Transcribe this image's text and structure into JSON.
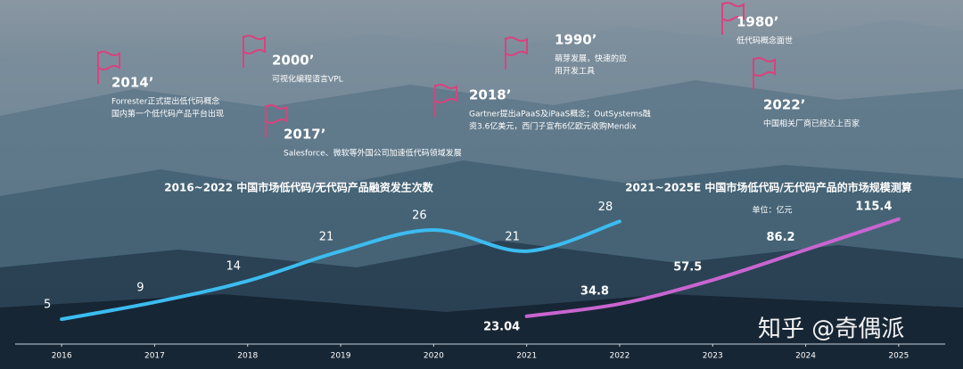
{
  "chart_data": [
    {
      "type": "line",
      "title": "2016~2022 中国市场低代码/无代码产品融资发生次数",
      "x": [
        2016,
        2017,
        2018,
        2019,
        2020,
        2021,
        2022
      ],
      "values": [
        5,
        9,
        14,
        21,
        26,
        21,
        28
      ],
      "color": "#3cbcf0",
      "xlim": [
        2015.5,
        2025.5
      ],
      "xticks": [
        2016,
        2017,
        2018,
        2019,
        2020,
        2021,
        2022,
        2023,
        2024,
        2025
      ]
    },
    {
      "type": "line",
      "title": "2021~2025E 中国市场低代码/无代码产品的市场规模测算",
      "subtitle": "单位：亿元",
      "x": [
        2021,
        2022,
        2023,
        2024,
        2025
      ],
      "values": [
        23.04,
        34.8,
        57.5,
        86.2,
        115.4
      ],
      "color": "#c865d0",
      "xlim": [
        2015.5,
        2025.5
      ]
    }
  ],
  "timeline": [
    {
      "year": "2014’",
      "lines": [
        "Forrester正式提出低代码概念",
        "国内第一个低代码产品平台出现"
      ]
    },
    {
      "year": "2000’",
      "lines": [
        "可视化编程语言VPL"
      ]
    },
    {
      "year": "2017’",
      "lines": [
        "Salesforce、微软等外国公司加速低代码领域发展"
      ]
    },
    {
      "year": "1990’",
      "lines": [
        "萌芽发展，快速的应",
        "用开发工具"
      ]
    },
    {
      "year": "2018’",
      "lines": [
        "Gartner提出aPaaS及iPaaS概念；OutSystems融",
        "资3.6亿美元，西门子宣布6亿欧元收购Mendix"
      ]
    },
    {
      "year": "1980’",
      "lines": [
        "低代码概念面世"
      ]
    },
    {
      "year": "2022’",
      "lines": [
        "中国相关厂商已经达上百家"
      ]
    }
  ],
  "watermark": "知乎 @奇偶派"
}
